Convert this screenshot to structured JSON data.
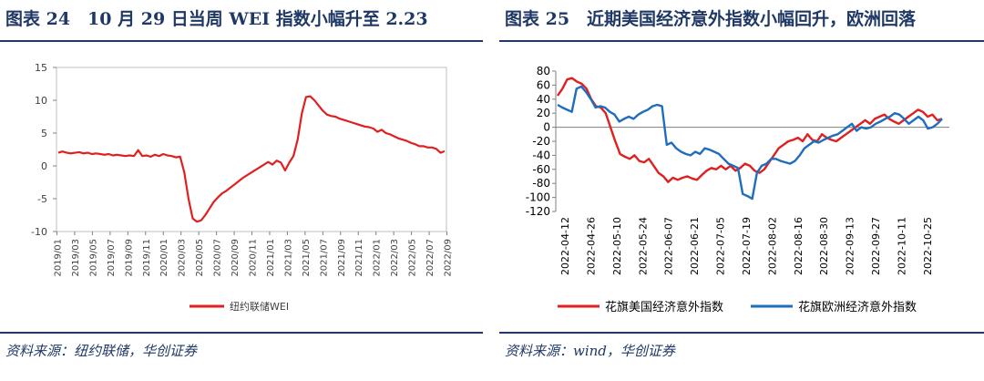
{
  "left": {
    "title": "图表 24　10 月 29 日当周 WEI 指数小幅升至 2.23",
    "source": "资料来源：纽约联储，华创证券",
    "chart_data": {
      "type": "line",
      "ylim": [
        -10,
        15
      ],
      "yticks": [
        "15",
        "10",
        "5",
        "0",
        "-5",
        "-10"
      ],
      "ytick_values": [
        15,
        10,
        5,
        0,
        -5,
        -10
      ],
      "xticks": [
        "2019/01",
        "2019/03",
        "2019/05",
        "2019/07",
        "2019/09",
        "2019/11",
        "2020/01",
        "2020/03",
        "2020/05",
        "2020/07",
        "2020/09",
        "2020/11",
        "2021/01",
        "2021/03",
        "2021/05",
        "2021/07",
        "2021/09",
        "2021/11",
        "2022/01",
        "2022/03",
        "2022/05",
        "2022/07",
        "2022/09"
      ],
      "color": "#e02020",
      "legend_position": "bottom",
      "series": [
        {
          "name": "纽约联储WEI",
          "values": [
            2.0,
            2.2,
            2.0,
            1.9,
            2.0,
            2.1,
            1.9,
            2.0,
            1.8,
            1.9,
            1.8,
            1.7,
            1.8,
            1.6,
            1.7,
            1.6,
            1.5,
            1.6,
            1.5,
            2.4,
            1.5,
            1.6,
            1.4,
            1.7,
            1.5,
            1.8,
            1.6,
            1.5,
            1.3,
            1.4,
            -1.0,
            -5.0,
            -8.0,
            -8.5,
            -8.3,
            -7.5,
            -6.5,
            -5.5,
            -4.8,
            -4.2,
            -3.8,
            -3.3,
            -2.8,
            -2.3,
            -1.8,
            -1.4,
            -1.0,
            -0.6,
            -0.2,
            0.2,
            0.6,
            0.2,
            0.8,
            0.5,
            -0.7,
            0.5,
            1.5,
            4.0,
            8.0,
            10.5,
            10.6,
            10.0,
            9.2,
            8.4,
            7.8,
            7.6,
            7.5,
            7.2,
            7.0,
            6.8,
            6.6,
            6.4,
            6.2,
            6.0,
            5.9,
            5.7,
            5.2,
            5.5,
            5.0,
            4.8,
            4.5,
            4.2,
            4.0,
            3.8,
            3.5,
            3.3,
            3.0,
            3.0,
            2.8,
            2.8,
            2.6,
            2.0,
            2.23
          ]
        }
      ]
    }
  },
  "right": {
    "title": "图表 25　近期美国经济意外指数小幅回升，欧洲回落",
    "source": "资料来源：wind，华创证券",
    "chart_data": {
      "type": "line",
      "ylim": [
        -120,
        80
      ],
      "yticks": [
        "80",
        "60",
        "40",
        "20",
        "0",
        "-20",
        "-40",
        "-60",
        "-80",
        "-100",
        "-120"
      ],
      "ytick_values": [
        80,
        60,
        40,
        20,
        0,
        -20,
        -40,
        -60,
        -80,
        -100,
        -120
      ],
      "xticks": [
        "2022-04-12",
        "2022-04-26",
        "2022-05-10",
        "2022-05-24",
        "2022-06-07",
        "2022-06-21",
        "2022-07-05",
        "2022-07-19",
        "2022-08-02",
        "2022-08-16",
        "2022-08-30",
        "2022-09-13",
        "2022-09-27",
        "2022-10-11",
        "2022-10-25"
      ],
      "legend_position": "bottom",
      "series": [
        {
          "name": "花旗美国经济意外指数",
          "color": "#e02020",
          "values": [
            45,
            55,
            68,
            70,
            65,
            62,
            55,
            40,
            30,
            28,
            20,
            0,
            -20,
            -38,
            -42,
            -45,
            -40,
            -48,
            -50,
            -45,
            -55,
            -65,
            -70,
            -78,
            -72,
            -75,
            -72,
            -70,
            -73,
            -75,
            -68,
            -62,
            -58,
            -60,
            -55,
            -60,
            -55,
            -62,
            -58,
            -52,
            -55,
            -62,
            -65,
            -60,
            -50,
            -40,
            -30,
            -25,
            -20,
            -18,
            -15,
            -20,
            -10,
            -18,
            -20,
            -10,
            -15,
            -18,
            -20,
            -15,
            -10,
            -5,
            0,
            5,
            10,
            5,
            12,
            15,
            18,
            12,
            8,
            5,
            10,
            15,
            20,
            25,
            22,
            15,
            18,
            10,
            12
          ]
        },
        {
          "name": "花旗欧洲经济意外指数",
          "color": "#1f6dbf",
          "values": [
            32,
            28,
            25,
            22,
            55,
            58,
            50,
            40,
            28,
            30,
            28,
            22,
            18,
            8,
            12,
            15,
            12,
            18,
            22,
            25,
            30,
            32,
            30,
            -25,
            -22,
            -30,
            -35,
            -38,
            -40,
            -35,
            -38,
            -30,
            -32,
            -35,
            -38,
            -45,
            -52,
            -55,
            -58,
            -95,
            -98,
            -102,
            -65,
            -55,
            -52,
            -45,
            -45,
            -48,
            -50,
            -52,
            -48,
            -40,
            -30,
            -25,
            -20,
            -22,
            -18,
            -15,
            -12,
            -10,
            -5,
            0,
            5,
            -5,
            0,
            -2,
            0,
            5,
            8,
            12,
            15,
            20,
            18,
            12,
            5,
            10,
            15,
            10,
            -2,
            0,
            5,
            12
          ]
        }
      ]
    }
  }
}
